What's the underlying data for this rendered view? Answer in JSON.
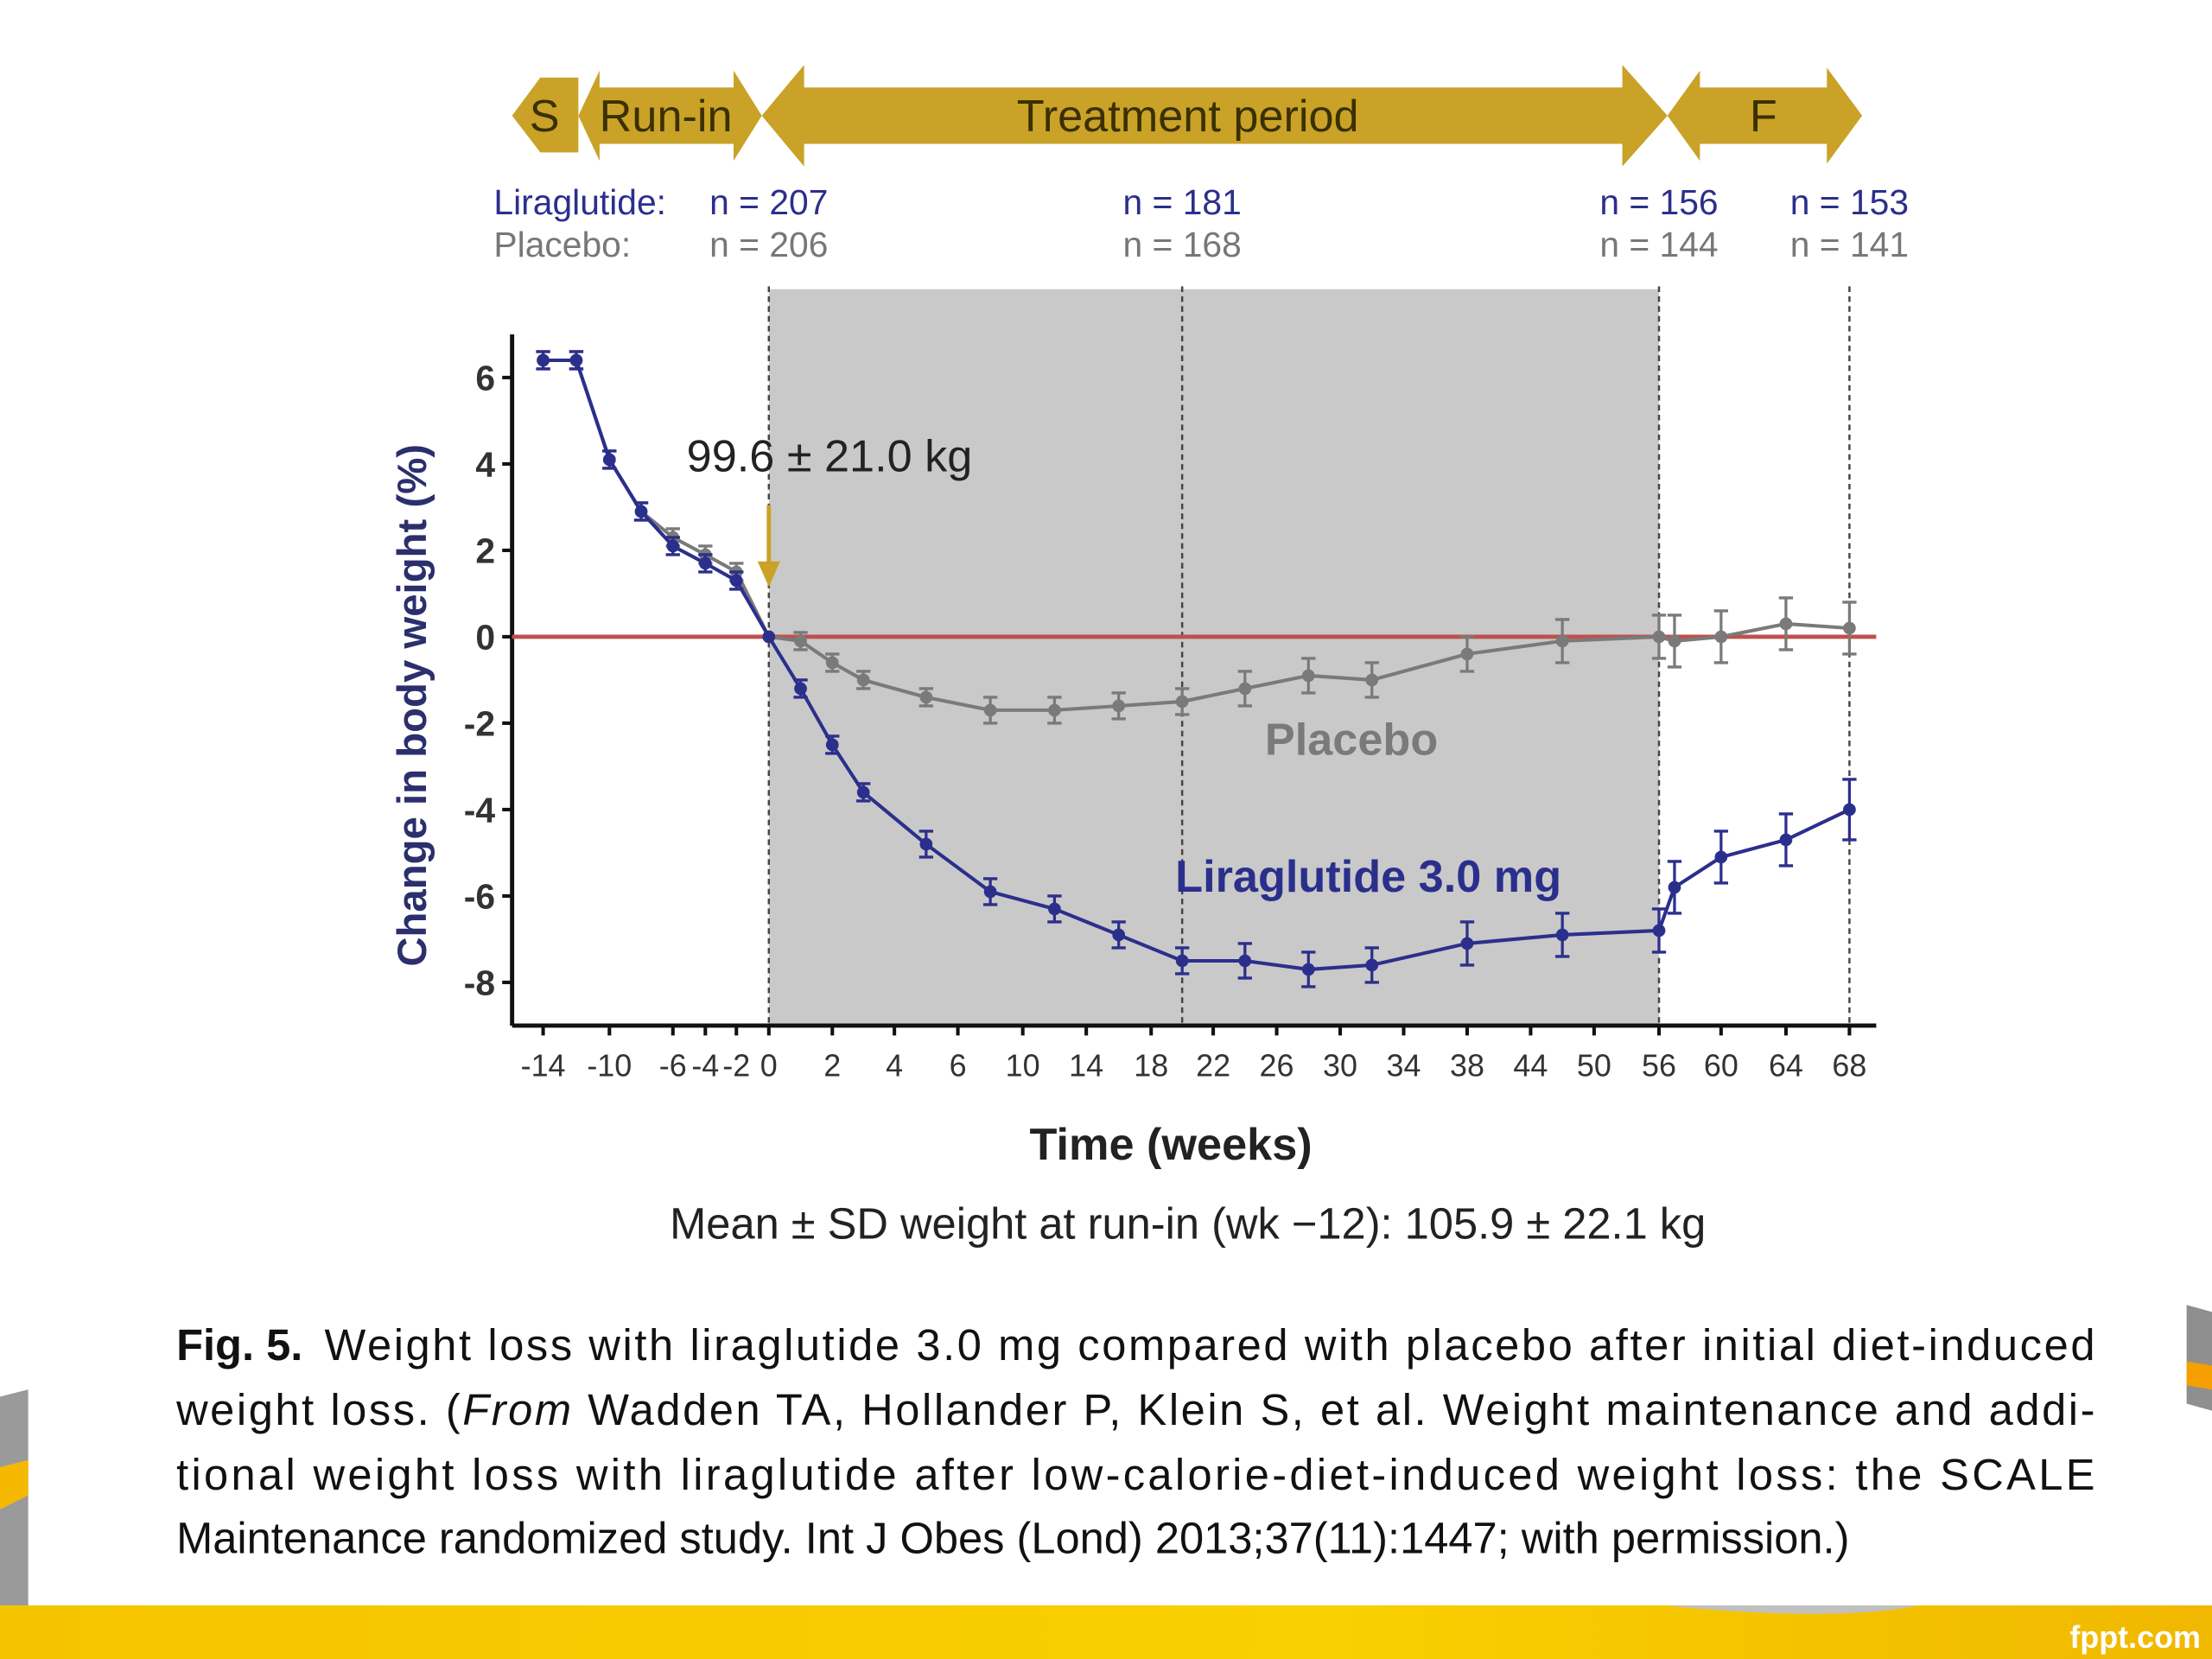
{
  "chart_data": {
    "type": "line",
    "phases": [
      "S",
      "Run-in",
      "Treatment period",
      "F"
    ],
    "n_groups": [
      "Liraglutide:",
      "Placebo:"
    ],
    "n_liraglutide": [
      "n = 207",
      "n = 181",
      "n = 156",
      "n = 153"
    ],
    "n_placebo": [
      "n = 206",
      "n = 168",
      "n = 144",
      "n = 141"
    ],
    "ylabel": "Change in body weight (%)",
    "xlabel": "Time (weeks)",
    "subtitle": "Mean ± SD weight at run-in (wk −12): 105.9 ± 22.1 kg",
    "annotation": "99.6 ± 21.0 kg",
    "xlim": [
      -16,
      70
    ],
    "xticks": [
      -14,
      -10,
      -6,
      -4,
      -2,
      0,
      2,
      4,
      6,
      10,
      14,
      18,
      22,
      26,
      30,
      34,
      38,
      44,
      50,
      56,
      60,
      64,
      68
    ],
    "ylim": [
      -9,
      7
    ],
    "yticks": [
      -8,
      -6,
      -4,
      -2,
      0,
      2,
      4,
      6
    ],
    "shade": [
      0,
      56
    ],
    "shade_color": "#c9c9c9",
    "vlines": [
      0,
      20,
      56,
      68
    ],
    "reference_line": 0,
    "reference_color": "#c0504d",
    "x": [
      -14,
      -12,
      -10,
      -8,
      -6,
      -4,
      -2,
      0,
      1,
      2,
      3,
      5,
      8,
      12,
      16,
      20,
      24,
      28,
      32,
      38,
      47,
      56,
      57,
      60,
      64,
      68
    ],
    "series": [
      {
        "name": "Placebo",
        "color": "#7a7a7a",
        "values": [
          6.4,
          6.4,
          4.1,
          2.9,
          2.3,
          1.9,
          1.5,
          0,
          -0.1,
          -0.6,
          -1.0,
          -1.4,
          -1.7,
          -1.7,
          -1.6,
          -1.5,
          -1.2,
          -0.9,
          -1.0,
          -0.4,
          -0.1,
          0.0,
          -0.1,
          0.0,
          0.3,
          0.2
        ],
        "errors": [
          0.2,
          0.2,
          0.2,
          0.2,
          0.2,
          0.2,
          0.2,
          0,
          0.2,
          0.2,
          0.2,
          0.2,
          0.3,
          0.3,
          0.3,
          0.3,
          0.4,
          0.4,
          0.4,
          0.4,
          0.5,
          0.5,
          0.6,
          0.6,
          0.6,
          0.6
        ]
      },
      {
        "name": "Liraglutide 3.0 mg",
        "color": "#2b2f8c",
        "values": [
          6.4,
          6.4,
          4.1,
          2.9,
          2.1,
          1.7,
          1.3,
          0,
          -1.2,
          -2.5,
          -3.6,
          -4.8,
          -5.9,
          -6.3,
          -6.9,
          -7.5,
          -7.5,
          -7.7,
          -7.6,
          -7.1,
          -6.9,
          -6.8,
          -5.8,
          -5.1,
          -4.7,
          -4.0
        ],
        "errors": [
          0.2,
          0.2,
          0.2,
          0.2,
          0.2,
          0.2,
          0.2,
          0,
          0.2,
          0.2,
          0.2,
          0.3,
          0.3,
          0.3,
          0.3,
          0.3,
          0.4,
          0.4,
          0.4,
          0.5,
          0.5,
          0.5,
          0.6,
          0.6,
          0.6,
          0.7
        ]
      }
    ]
  },
  "caption": {
    "label": "Fig. 5.",
    "line1": "Weight loss with liraglutide 3.0 mg compared with placebo after initial diet-induced",
    "line2_pre": "weight loss. (",
    "line2_italic": "From",
    "line2_post": " Wadden TA, Hollander P, Klein S, et al. Weight maintenance and addi-",
    "line3": "tional weight loss with liraglutide after low-calorie-diet-induced weight loss: the SCALE",
    "line4": "Maintenance randomized study. Int J Obes (Lond) 2013;37(11):1447; with permission.)"
  },
  "watermark": "fppt.com"
}
